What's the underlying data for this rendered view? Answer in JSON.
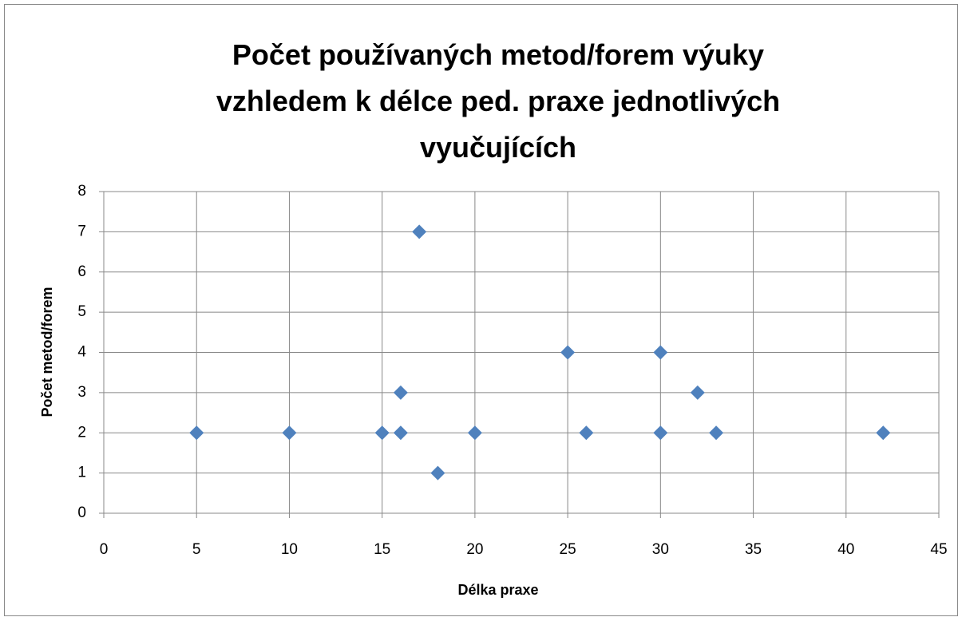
{
  "chart_data": {
    "type": "scatter",
    "title": "Počet používaných metod/forem výuky vzhledem k délce ped. praxe jednotlivých vyučujících",
    "x_label": "Délka praxe",
    "y_label": "Počet metod/forem",
    "series": [
      {
        "color": "#4f81bd",
        "x": [
          5,
          10,
          15,
          16,
          16,
          17,
          18,
          20,
          25,
          26,
          30,
          30,
          32,
          33,
          42
        ],
        "values": [
          2,
          2,
          2,
          3,
          2,
          7,
          1,
          2,
          4,
          2,
          4,
          2,
          3,
          2,
          2
        ]
      }
    ],
    "xlim": [
      0,
      45
    ],
    "xticks": [
      0,
      5,
      10,
      15,
      20,
      25,
      30,
      35,
      40,
      45
    ],
    "ylim": [
      0,
      8
    ],
    "yticks": [
      0,
      1,
      2,
      3,
      4,
      5,
      6,
      7,
      8
    ],
    "grid": true
  }
}
